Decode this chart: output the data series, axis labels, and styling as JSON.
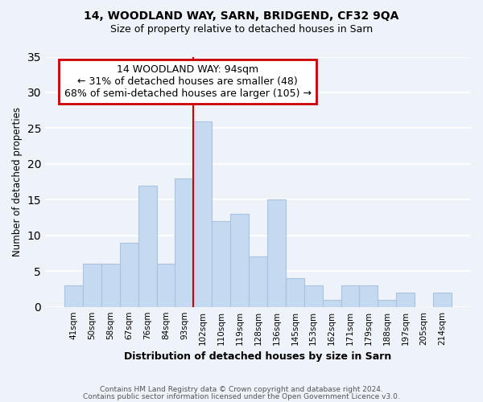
{
  "title1": "14, WOODLAND WAY, SARN, BRIDGEND, CF32 9QA",
  "title2": "Size of property relative to detached houses in Sarn",
  "xlabel": "Distribution of detached houses by size in Sarn",
  "ylabel": "Number of detached properties",
  "bar_labels": [
    "41sqm",
    "50sqm",
    "58sqm",
    "67sqm",
    "76sqm",
    "84sqm",
    "93sqm",
    "102sqm",
    "110sqm",
    "119sqm",
    "128sqm",
    "136sqm",
    "145sqm",
    "153sqm",
    "162sqm",
    "171sqm",
    "179sqm",
    "188sqm",
    "197sqm",
    "205sqm",
    "214sqm"
  ],
  "bar_values": [
    3,
    6,
    6,
    9,
    17,
    6,
    18,
    26,
    12,
    13,
    7,
    15,
    4,
    3,
    1,
    3,
    3,
    1,
    2,
    0,
    2
  ],
  "bar_color": "#c5d9f0",
  "bar_edge_color": "#aac4e0",
  "vline_x": 7.0,
  "annotation_title": "14 WOODLAND WAY: 94sqm",
  "annotation_line1": "← 31% of detached houses are smaller (48)",
  "annotation_line2": "68% of semi-detached houses are larger (105) →",
  "annotation_box_color": "#ffffff",
  "annotation_box_edgecolor": "#cc0000",
  "ylim": [
    0,
    35
  ],
  "yticks": [
    0,
    5,
    10,
    15,
    20,
    25,
    30,
    35
  ],
  "footer1": "Contains HM Land Registry data © Crown copyright and database right 2024.",
  "footer2": "Contains public sector information licensed under the Open Government Licence v3.0.",
  "background_color": "#eef2f9",
  "grid_color": "#ffffff"
}
